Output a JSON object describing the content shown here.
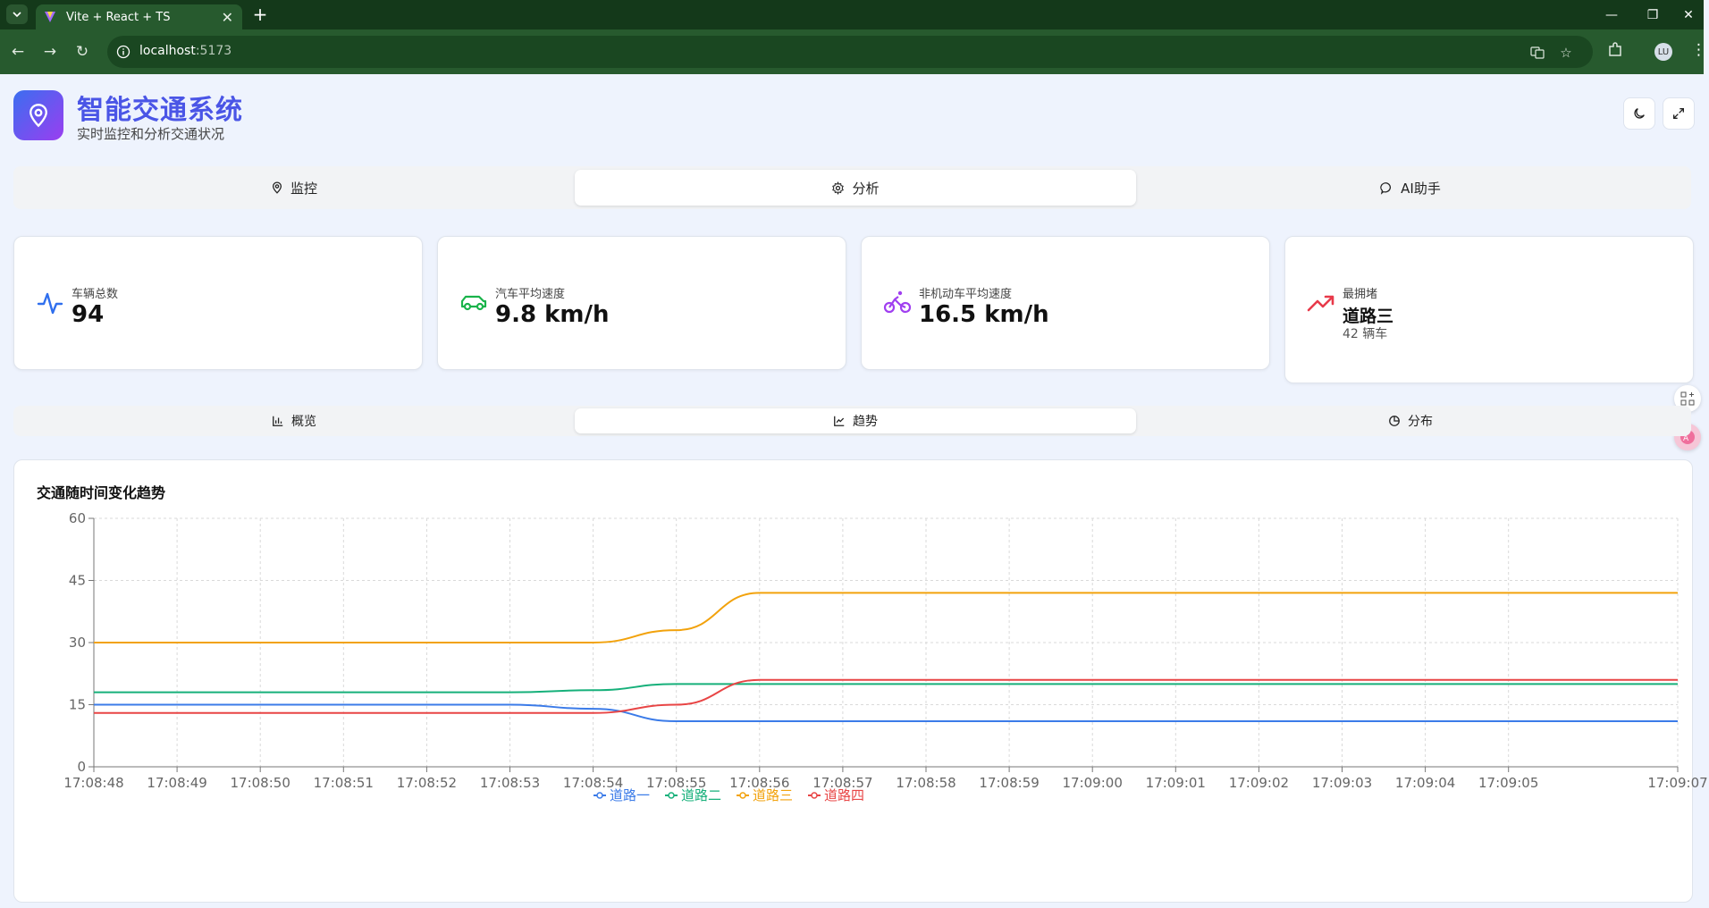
{
  "browser": {
    "tab_title": "Vite + React + TS",
    "url_host": "localhost",
    "url_port": ":5173",
    "profile_initials": "LU"
  },
  "header": {
    "title": "智能交通系统",
    "subtitle": "实时监控和分析交通状况"
  },
  "main_tabs": [
    {
      "label": "监控",
      "icon": "map-pin-icon",
      "active": false
    },
    {
      "label": "分析",
      "icon": "gear-icon",
      "active": true
    },
    {
      "label": "AI助手",
      "icon": "chat-icon",
      "active": false
    }
  ],
  "stats": [
    {
      "label": "车辆总数",
      "value": "94",
      "icon": "activity-icon",
      "color": "#2f6fee"
    },
    {
      "label": "汽车平均速度",
      "value": "9.8 km/h",
      "icon": "car-icon",
      "color": "#19b34a"
    },
    {
      "label": "非机动车平均速度",
      "value": "16.5 km/h",
      "icon": "bike-icon",
      "color": "#a03ff0"
    },
    {
      "label": "最拥堵",
      "value": "道路三",
      "sub": "42 辆车",
      "icon": "trending-up-icon",
      "color": "#e83a4a"
    }
  ],
  "sub_tabs": [
    {
      "label": "概览",
      "icon": "bar-chart-icon",
      "active": false
    },
    {
      "label": "趋势",
      "icon": "line-chart-icon",
      "active": true
    },
    {
      "label": "分布",
      "icon": "pie-chart-icon",
      "active": false
    }
  ],
  "chart_title": "交通随时间变化趋势",
  "chart_data": {
    "type": "line",
    "x": [
      "17:08:48",
      "17:08:49",
      "17:08:50",
      "17:08:51",
      "17:08:52",
      "17:08:53",
      "17:08:54",
      "17:08:55",
      "17:08:56",
      "17:08:57",
      "17:08:58",
      "17:08:59",
      "17:09:00",
      "17:09:01",
      "17:09:02",
      "17:09:03",
      "17:09:04",
      "17:09:05",
      "17:09:07"
    ],
    "x_tick_labels": [
      "17:08:48",
      "17:08:49",
      "17:08:50",
      "17:08:51",
      "17:08:52",
      "17:08:53",
      "17:08:54",
      "17:08:55",
      "17:08:56",
      "17:08:57",
      "17:08:58",
      "17:08:59",
      "17:09:00",
      "17:09:01",
      "17:09:02",
      "17:09:03",
      "17:09:04",
      "17:09:05",
      "17:09:07"
    ],
    "y_ticks": [
      0,
      15,
      30,
      45,
      60
    ],
    "ylim": [
      0,
      60
    ],
    "grid": true,
    "legend_position": "bottom-center",
    "series": [
      {
        "name": "道路一",
        "color": "#3b7be8",
        "values": [
          15,
          15,
          15,
          15,
          15,
          15,
          14,
          11,
          11,
          11,
          11,
          11,
          11,
          11,
          11,
          11,
          11,
          11,
          11
        ]
      },
      {
        "name": "道路二",
        "color": "#16b07a",
        "values": [
          18,
          18,
          18,
          18,
          18,
          18,
          18.5,
          20,
          20,
          20,
          20,
          20,
          20,
          20,
          20,
          20,
          20,
          20,
          20
        ]
      },
      {
        "name": "道路三",
        "color": "#f2a20c",
        "values": [
          30,
          30,
          30,
          30,
          30,
          30,
          30,
          33,
          42,
          42,
          42,
          42,
          42,
          42,
          42,
          42,
          42,
          42,
          42
        ]
      },
      {
        "name": "道路四",
        "color": "#e84545",
        "values": [
          13,
          13,
          13,
          13,
          13,
          13,
          13,
          15,
          21,
          21,
          21,
          21,
          21,
          21,
          21,
          21,
          21,
          21,
          21
        ]
      }
    ]
  }
}
